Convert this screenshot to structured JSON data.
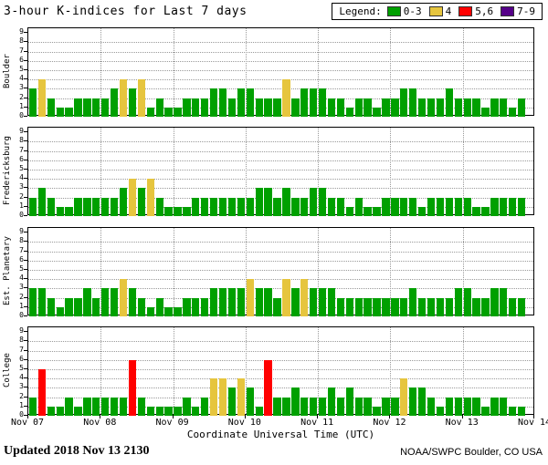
{
  "title": "3-hour K-indices for Last 7 days",
  "legend": {
    "label": "Legend:",
    "items": [
      {
        "name": "green",
        "label": "0-3",
        "color": "#00A000"
      },
      {
        "name": "yellow",
        "label": "4",
        "color": "#E6C53E"
      },
      {
        "name": "red",
        "label": "5,6",
        "color": "#FF0000"
      },
      {
        "name": "purple",
        "label": "7-9",
        "color": "#550088"
      }
    ]
  },
  "footer": {
    "updated": "Updated 2018 Nov 13 2130",
    "source": "NOAA/SWPC Boulder, CO USA"
  },
  "chart_data": {
    "type": "bar",
    "title": "3-hour K-indices for Last 7 days",
    "xlabel": "Coordinate Universal Time (UTC)",
    "ylim": [
      0,
      9
    ],
    "grid": true,
    "legend_position": "top-right",
    "days": 7,
    "intervals_per_day": 8,
    "x_tick_labels": [
      "Nov 07",
      "Nov 08",
      "Nov 09",
      "Nov 10",
      "Nov 11",
      "Nov 12",
      "Nov 13",
      "Nov 14"
    ],
    "y_tick_labels": [
      "0",
      "1",
      "2",
      "3",
      "4",
      "5",
      "6",
      "7",
      "8",
      "9"
    ],
    "colors": {
      "green": "#00A000",
      "yellow": "#E6C53E",
      "red": "#FF0000",
      "purple": "#550088"
    },
    "color_scale": {
      "0-3": "green",
      "4": "yellow",
      "5,6": "red",
      "7-9": "purple"
    },
    "panels": [
      {
        "station": "Boulder",
        "values": [
          3,
          4,
          2,
          1,
          1,
          2,
          2,
          2,
          2,
          3,
          4,
          3,
          4,
          1,
          2,
          1,
          1,
          2,
          2,
          2,
          3,
          3,
          2,
          3,
          3,
          2,
          2,
          2,
          4,
          2,
          3,
          3,
          3,
          2,
          2,
          1,
          2,
          2,
          1,
          2,
          2,
          3,
          3,
          2,
          2,
          2,
          3,
          2,
          2,
          2,
          1,
          2,
          2,
          1,
          2
        ]
      },
      {
        "station": "Fredericksburg",
        "values": [
          2,
          3,
          2,
          1,
          1,
          2,
          2,
          2,
          2,
          2,
          3,
          4,
          3,
          4,
          2,
          1,
          1,
          1,
          2,
          2,
          2,
          2,
          2,
          2,
          2,
          3,
          3,
          2,
          3,
          2,
          2,
          3,
          3,
          2,
          2,
          1,
          2,
          1,
          1,
          2,
          2,
          2,
          2,
          1,
          2,
          2,
          2,
          2,
          2,
          1,
          1,
          2,
          2,
          2,
          2
        ]
      },
      {
        "station": "Est. Planetary",
        "values": [
          3,
          3,
          2,
          1,
          2,
          2,
          3,
          2,
          3,
          3,
          4,
          3,
          2,
          1,
          2,
          1,
          1,
          2,
          2,
          2,
          3,
          3,
          3,
          3,
          4,
          3,
          3,
          2,
          4,
          3,
          4,
          3,
          3,
          3,
          2,
          2,
          2,
          2,
          2,
          2,
          2,
          2,
          3,
          2,
          2,
          2,
          2,
          3,
          3,
          2,
          2,
          3,
          3,
          2,
          2
        ]
      },
      {
        "station": "College",
        "values": [
          2,
          5,
          1,
          1,
          2,
          1,
          2,
          2,
          2,
          2,
          2,
          6,
          2,
          1,
          1,
          1,
          1,
          2,
          1,
          2,
          4,
          4,
          3,
          4,
          3,
          1,
          6,
          2,
          2,
          3,
          2,
          2,
          2,
          3,
          2,
          3,
          2,
          2,
          1,
          2,
          2,
          4,
          3,
          3,
          2,
          1,
          2,
          2,
          2,
          2,
          1,
          2,
          2,
          1,
          1
        ]
      }
    ]
  }
}
